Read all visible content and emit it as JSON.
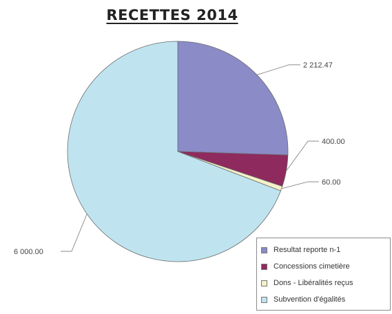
{
  "chart_data": {
    "type": "pie",
    "title": "RECETTES 2014",
    "slices": [
      {
        "name": "Resultat reporte n-1",
        "value": 2212.47,
        "label": "2 212.47",
        "color": "#8b8bc8"
      },
      {
        "name": "Concessions cimetière",
        "value": 400,
        "label": "400.00",
        "color": "#8e2a5e"
      },
      {
        "name": "Dons - Libéralités reçus",
        "value": 60,
        "label": "60.00",
        "color": "#f4f1c8"
      },
      {
        "name": "Subvention d'égalités",
        "value": 6000,
        "label": "6 000.00",
        "color": "#bfe4f0"
      }
    ],
    "legend_position": "bottom-right"
  }
}
